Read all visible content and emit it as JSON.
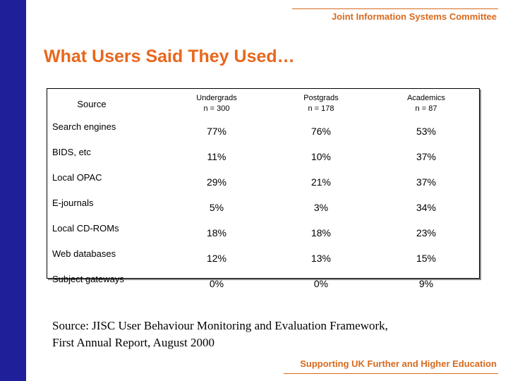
{
  "header": {
    "organization": "Joint Information Systems Committee"
  },
  "slide": {
    "title": "What Users Said They Used…"
  },
  "table": {
    "columns": [
      {
        "label": "Source",
        "n": ""
      },
      {
        "label": "Undergrads",
        "n": "n = 300"
      },
      {
        "label": "Postgrads",
        "n": "n = 178"
      },
      {
        "label": "Academics",
        "n": "n = 87"
      }
    ],
    "rows": [
      {
        "source": "Search engines",
        "undergrads": "77%",
        "postgrads": "76%",
        "academics": "53%"
      },
      {
        "source": "BIDS, etc",
        "undergrads": "11%",
        "postgrads": "10%",
        "academics": "37%"
      },
      {
        "source": "Local OPAC",
        "undergrads": "29%",
        "postgrads": "21%",
        "academics": "37%"
      },
      {
        "source": "E-journals",
        "undergrads": "5%",
        "postgrads": "3%",
        "academics": "34%"
      },
      {
        "source": "Local CD-ROMs",
        "undergrads": "18%",
        "postgrads": "18%",
        "academics": "23%"
      },
      {
        "source": "Web databases",
        "undergrads": "12%",
        "postgrads": "13%",
        "academics": "15%"
      },
      {
        "source": "Subject gateways",
        "undergrads": "0%",
        "postgrads": "0%",
        "academics": "9%"
      }
    ]
  },
  "citation": {
    "line1": "Source: JISC User Behaviour Monitoring and Evaluation Framework,",
    "line2": "First Annual Report, August 2000"
  },
  "footer": {
    "tagline": "Supporting UK Further and Higher Education"
  },
  "colors": {
    "accent": "#e8671d",
    "sidebar": "#1f1f9a"
  }
}
